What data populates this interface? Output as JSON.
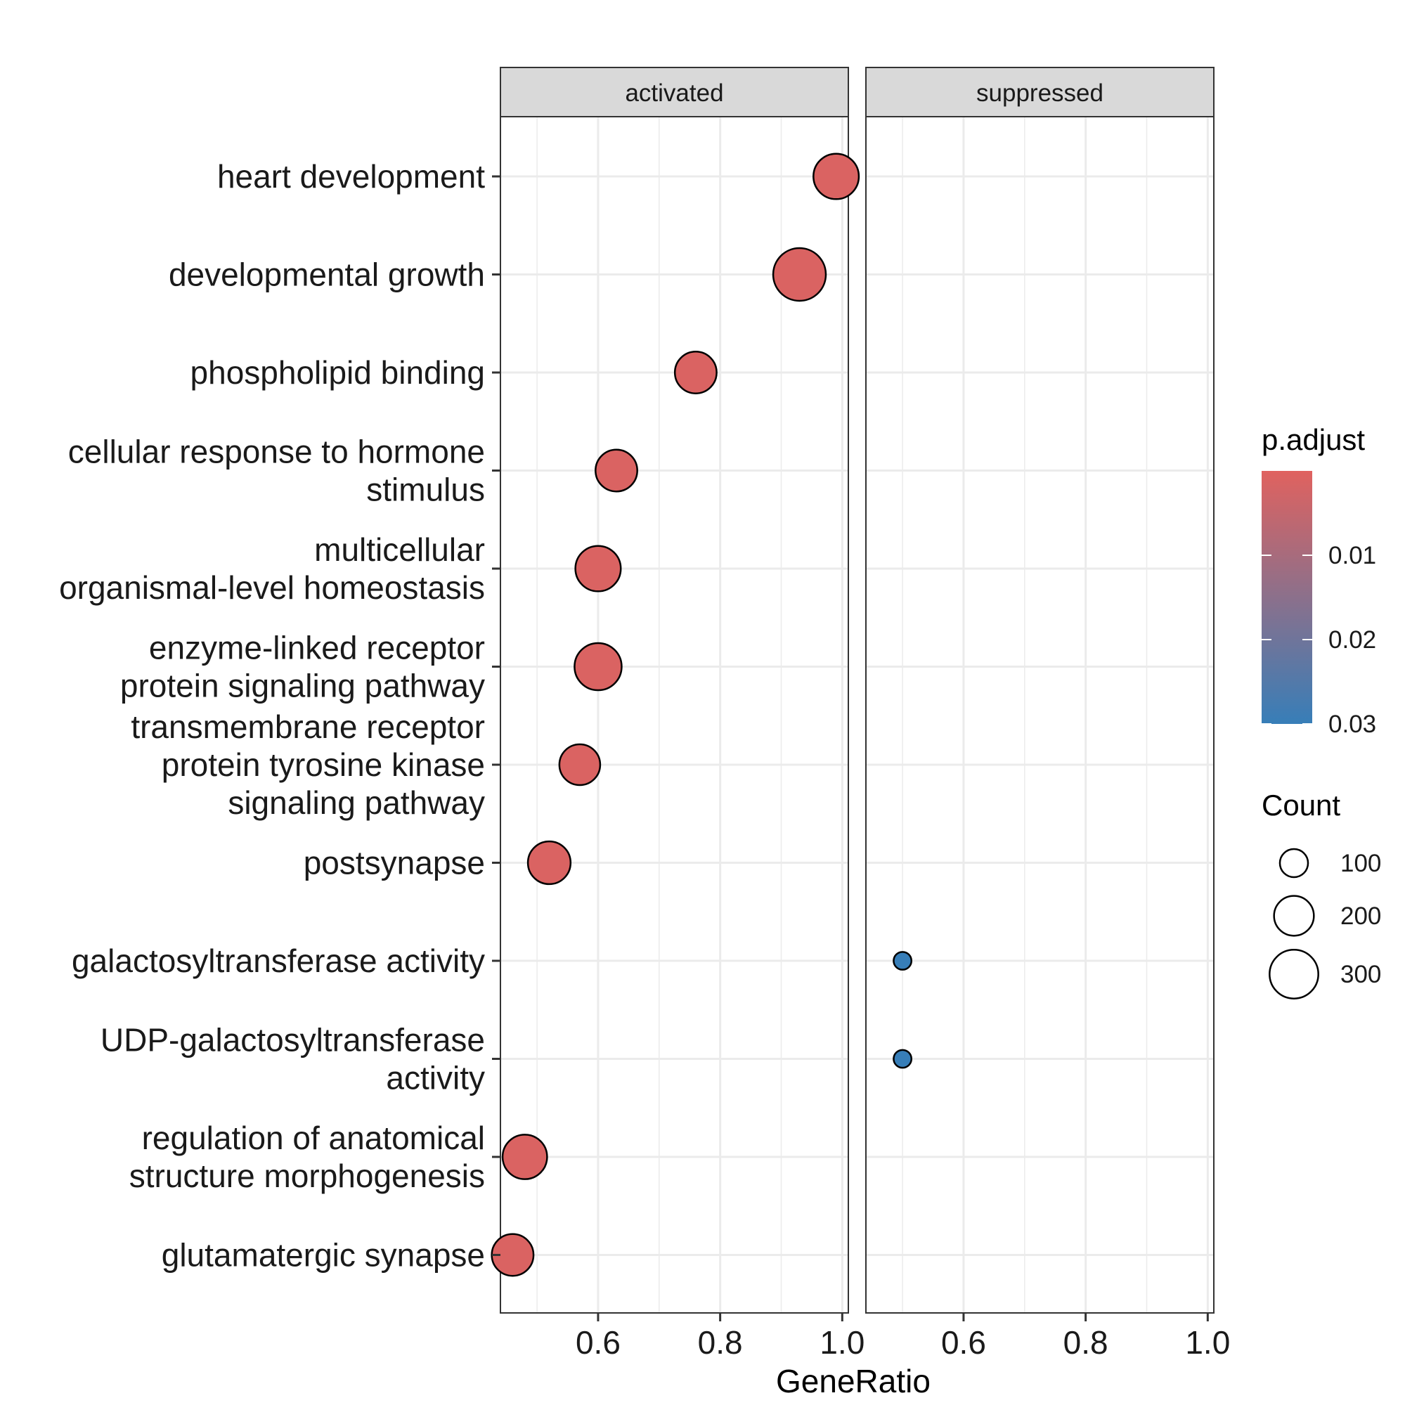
{
  "chart_data": {
    "type": "scatter",
    "xlabel": "GeneRatio",
    "xlim": [
      0.44,
      1.01
    ],
    "x_ticks": [
      0.6,
      0.8,
      1.0
    ],
    "x_tick_labels": [
      "0.6",
      "0.8",
      "1.0"
    ],
    "grid": true,
    "facets": [
      "activated",
      "suppressed"
    ],
    "categories": [
      [
        "heart development"
      ],
      [
        "developmental growth"
      ],
      [
        "phospholipid binding"
      ],
      [
        "cellular response to hormone",
        "stimulus"
      ],
      [
        "multicellular",
        "organismal-level homeostasis"
      ],
      [
        "enzyme-linked receptor",
        "protein signaling pathway"
      ],
      [
        "transmembrane receptor",
        "protein tyrosine kinase",
        "signaling pathway"
      ],
      [
        "postsynapse"
      ],
      [
        "galactosyltransferase activity"
      ],
      [
        "UDP-galactosyltransferase",
        "activity"
      ],
      [
        "regulation of anatomical",
        "structure morphogenesis"
      ],
      [
        "glutamatergic synapse"
      ]
    ],
    "points": [
      {
        "facet": "activated",
        "category": 0,
        "x": 0.99,
        "count": 260,
        "p_adjust": 0.001
      },
      {
        "facet": "activated",
        "category": 1,
        "x": 0.93,
        "count": 350,
        "p_adjust": 0.001
      },
      {
        "facet": "activated",
        "category": 2,
        "x": 0.76,
        "count": 220,
        "p_adjust": 0.001
      },
      {
        "facet": "activated",
        "category": 3,
        "x": 0.63,
        "count": 220,
        "p_adjust": 0.001
      },
      {
        "facet": "activated",
        "category": 4,
        "x": 0.6,
        "count": 260,
        "p_adjust": 0.001
      },
      {
        "facet": "activated",
        "category": 5,
        "x": 0.6,
        "count": 280,
        "p_adjust": 0.001
      },
      {
        "facet": "activated",
        "category": 6,
        "x": 0.57,
        "count": 210,
        "p_adjust": 0.001
      },
      {
        "facet": "activated",
        "category": 7,
        "x": 0.52,
        "count": 230,
        "p_adjust": 0.001
      },
      {
        "facet": "suppressed",
        "category": 8,
        "x": 0.5,
        "count": 40,
        "p_adjust": 0.03
      },
      {
        "facet": "suppressed",
        "category": 9,
        "x": 0.5,
        "count": 40,
        "p_adjust": 0.03
      },
      {
        "facet": "activated",
        "category": 10,
        "x": 0.48,
        "count": 250,
        "p_adjust": 0.001
      },
      {
        "facet": "activated",
        "category": 11,
        "x": 0.46,
        "count": 220,
        "p_adjust": 0.001
      }
    ],
    "color_legend": {
      "title": "p.adjust",
      "ticks": [
        0.01,
        0.02,
        0.03
      ],
      "tick_labels": [
        "0.01",
        "0.02",
        "0.03"
      ],
      "range": [
        0.0,
        0.03
      ],
      "low_color": "#E0625F",
      "high_color": "#377EB8"
    },
    "size_legend": {
      "title": "Count",
      "values": [
        100,
        200,
        300
      ],
      "labels": [
        "100",
        "200",
        "300"
      ]
    },
    "colors": {
      "strip_fill": "#D9D9D9",
      "grid_major": "#EBEBEB",
      "panel_border": "#333333",
      "point_stroke": "#000000"
    }
  }
}
